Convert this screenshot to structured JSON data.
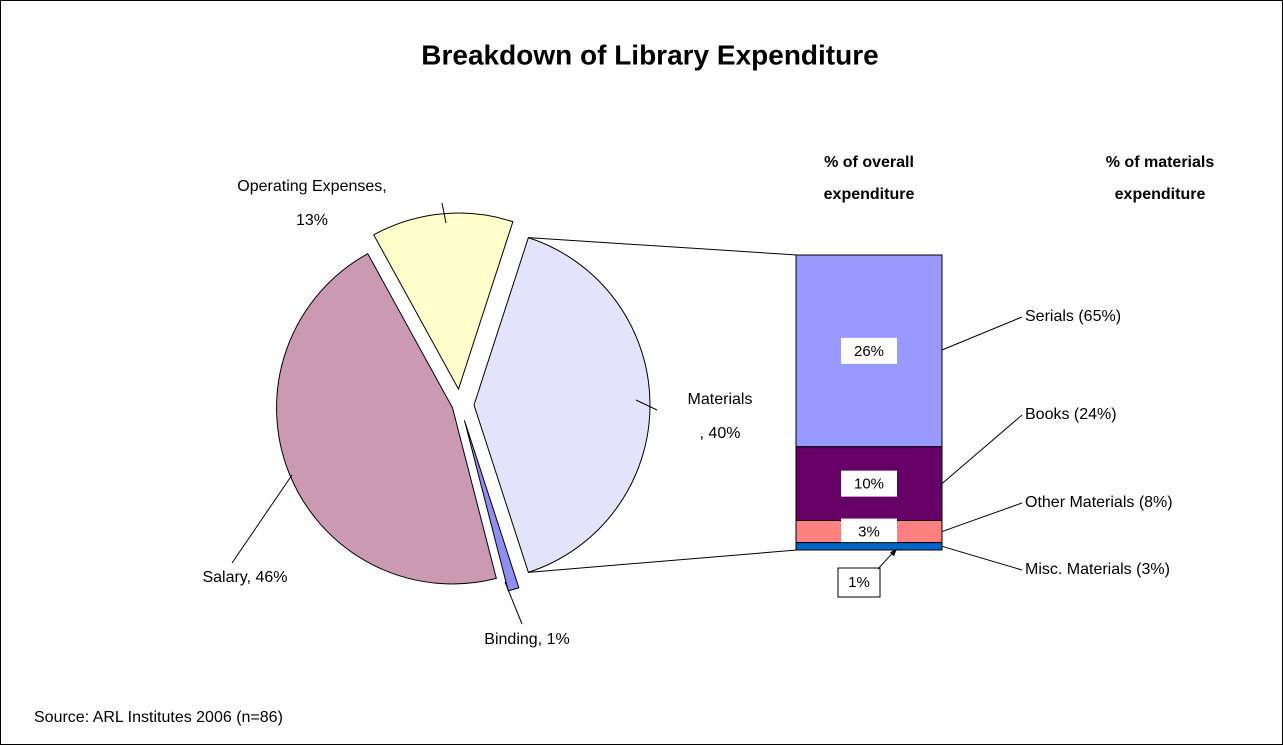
{
  "title": "Breakdown of Library Expenditure",
  "source": "Source: ARL Institutes 2006 (n=86)",
  "chart_data": [
    {
      "type": "pie",
      "values": [
        40,
        1,
        46,
        13
      ],
      "value_labels": [
        [
          "Materials",
          ", 40%"
        ],
        [
          "Binding, 1%"
        ],
        [
          "Salary, 46%"
        ],
        [
          "Operating Expenses,",
          "13%"
        ]
      ],
      "colors": [
        "#e3e3fb",
        "#8f8ff2",
        "#cc99b2",
        "#ffffcc"
      ]
    },
    {
      "type": "stacked_bar",
      "column_headers": [
        [
          "% of overall",
          "expenditure"
        ],
        [
          "% of materials",
          "expenditure"
        ]
      ],
      "series": [
        {
          "name": "Serials (65%)",
          "color": "#9999ff",
          "values": [
            26
          ],
          "value_labels": [
            "26%"
          ]
        },
        {
          "name": "Books (24%)",
          "color": "#660066",
          "values": [
            10
          ],
          "value_labels": [
            "10%"
          ]
        },
        {
          "name": "Other Materials (8%)",
          "color": "#ff8080",
          "values": [
            3
          ],
          "value_labels": [
            "3%"
          ]
        },
        {
          "name": "Misc. Materials (3%)",
          "color": "#0066cc",
          "values": [
            1
          ],
          "value_labels": [
            "1%"
          ]
        }
      ]
    }
  ]
}
